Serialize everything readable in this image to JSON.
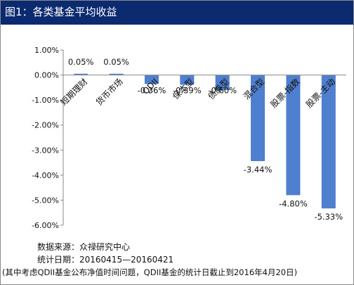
{
  "title": "图1：各类基金平均收益",
  "chart_data": {
    "type": "bar",
    "categories": [
      "短期理财",
      "货币市场",
      "QDII",
      "保本型",
      "债券型",
      "混合型",
      "股票-指数",
      "股票-主动"
    ],
    "values": [
      0.05,
      0.05,
      -0.36,
      -0.39,
      -0.6,
      -3.44,
      -4.8,
      -5.33
    ],
    "value_labels": [
      "0.05%",
      "0.05%",
      "-0.36%",
      "-0.39%",
      "-0.60%",
      "-3.44%",
      "-4.80%",
      "-5.33%"
    ],
    "yticks": [
      1,
      0,
      -1,
      -2,
      -3,
      -4,
      -5,
      -6
    ],
    "ytick_labels": [
      "1.00%",
      "0.00%",
      "-1.00%",
      "-2.00%",
      "-3.00%",
      "-4.00%",
      "-5.00%",
      "-6.00%"
    ],
    "ylim": [
      -6,
      1
    ],
    "bar_color": "#4f7fcf",
    "gridlines": false,
    "legend": "none"
  },
  "notes": {
    "source": "数据来源：众禄研究中心",
    "period": "统计日期：20160415—20160421",
    "footnote": "(其中考虑QDII基金公布净值时间问题，QDII基金的统计日截止到2016年4月20日)"
  }
}
